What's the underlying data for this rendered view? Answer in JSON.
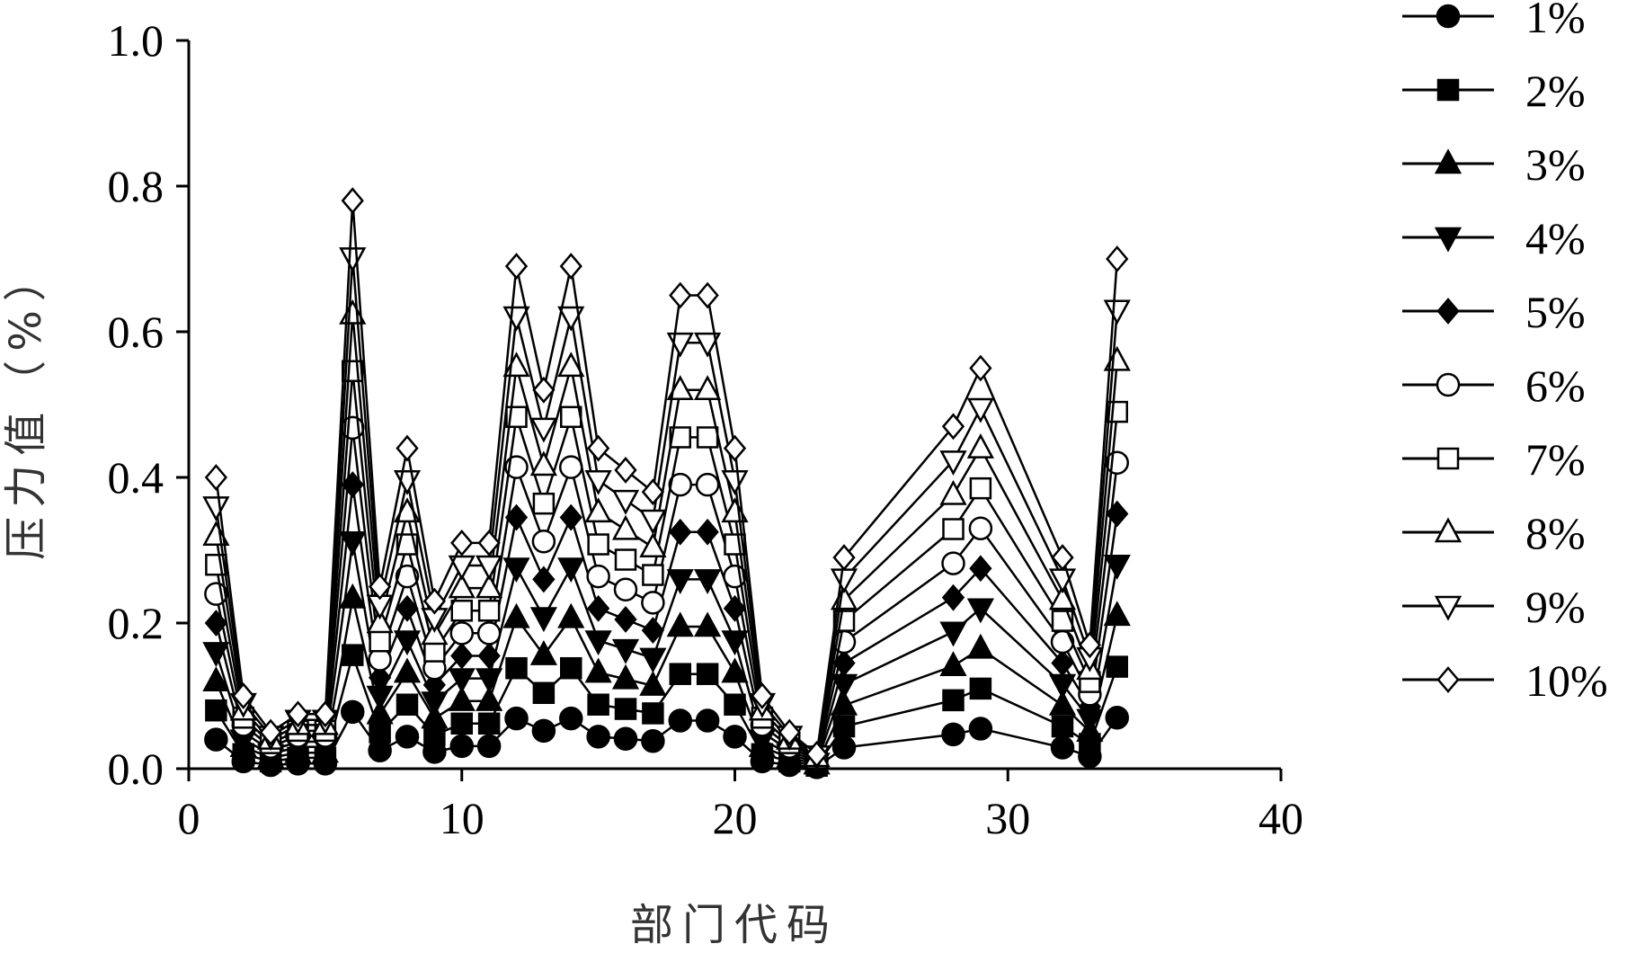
{
  "chart_data": {
    "type": "line",
    "title": "",
    "xlabel": "部门代码",
    "ylabel": "压力值（%）",
    "xlim": [
      0,
      40
    ],
    "ylim": [
      0.0,
      1.0
    ],
    "x_ticks": [
      "0",
      "10",
      "20",
      "30",
      "40"
    ],
    "y_ticks": [
      "0.0",
      "0.2",
      "0.4",
      "0.6",
      "0.8",
      "1.0"
    ],
    "grid": false,
    "legend_position": "right",
    "x": [
      1,
      2,
      3,
      4,
      5,
      6,
      7,
      8,
      9,
      10,
      11,
      12,
      13,
      14,
      15,
      16,
      17,
      18,
      19,
      20,
      21,
      22,
      23,
      24,
      28,
      29,
      32,
      33,
      34
    ],
    "series": [
      {
        "name": "1%",
        "marker": "circle-filled",
        "values": [
          0.04,
          0.01,
          0.005,
          0.007,
          0.007,
          0.078,
          0.025,
          0.044,
          0.023,
          0.031,
          0.031,
          0.069,
          0.052,
          0.069,
          0.044,
          0.041,
          0.038,
          0.066,
          0.066,
          0.044,
          0.01,
          0.005,
          0.002,
          0.029,
          0.047,
          0.055,
          0.029,
          0.017,
          0.07
        ]
      },
      {
        "name": "2%",
        "marker": "square-filled",
        "values": [
          0.08,
          0.02,
          0.01,
          0.015,
          0.015,
          0.156,
          0.05,
          0.088,
          0.046,
          0.062,
          0.062,
          0.138,
          0.104,
          0.138,
          0.088,
          0.082,
          0.076,
          0.13,
          0.13,
          0.088,
          0.02,
          0.01,
          0.004,
          0.058,
          0.094,
          0.11,
          0.058,
          0.034,
          0.14
        ]
      },
      {
        "name": "3%",
        "marker": "triangle-up-filled",
        "values": [
          0.12,
          0.03,
          0.015,
          0.022,
          0.022,
          0.234,
          0.075,
          0.132,
          0.069,
          0.093,
          0.093,
          0.207,
          0.156,
          0.207,
          0.132,
          0.123,
          0.114,
          0.195,
          0.195,
          0.132,
          0.03,
          0.015,
          0.006,
          0.087,
          0.141,
          0.165,
          0.087,
          0.051,
          0.21
        ]
      },
      {
        "name": "4%",
        "marker": "triangle-down-filled",
        "values": [
          0.16,
          0.04,
          0.02,
          0.03,
          0.03,
          0.312,
          0.1,
          0.176,
          0.092,
          0.124,
          0.124,
          0.276,
          0.208,
          0.276,
          0.176,
          0.164,
          0.152,
          0.26,
          0.26,
          0.176,
          0.04,
          0.02,
          0.008,
          0.116,
          0.188,
          0.22,
          0.116,
          0.068,
          0.28
        ]
      },
      {
        "name": "5%",
        "marker": "diamond-filled",
        "values": [
          0.2,
          0.05,
          0.025,
          0.037,
          0.037,
          0.39,
          0.125,
          0.22,
          0.115,
          0.155,
          0.155,
          0.345,
          0.26,
          0.345,
          0.22,
          0.205,
          0.19,
          0.325,
          0.325,
          0.22,
          0.05,
          0.025,
          0.01,
          0.145,
          0.235,
          0.275,
          0.145,
          0.085,
          0.35
        ]
      },
      {
        "name": "6%",
        "marker": "circle-open",
        "values": [
          0.24,
          0.06,
          0.03,
          0.045,
          0.045,
          0.468,
          0.15,
          0.264,
          0.138,
          0.186,
          0.186,
          0.414,
          0.312,
          0.414,
          0.264,
          0.246,
          0.228,
          0.39,
          0.39,
          0.264,
          0.06,
          0.03,
          0.012,
          0.174,
          0.282,
          0.33,
          0.174,
          0.102,
          0.42
        ]
      },
      {
        "name": "7%",
        "marker": "square-open",
        "values": [
          0.28,
          0.07,
          0.035,
          0.052,
          0.052,
          0.546,
          0.175,
          0.308,
          0.161,
          0.217,
          0.217,
          0.483,
          0.364,
          0.483,
          0.308,
          0.287,
          0.266,
          0.455,
          0.455,
          0.308,
          0.07,
          0.035,
          0.014,
          0.203,
          0.329,
          0.385,
          0.203,
          0.119,
          0.49
        ]
      },
      {
        "name": "8%",
        "marker": "triangle-up-open",
        "values": [
          0.32,
          0.08,
          0.04,
          0.06,
          0.06,
          0.624,
          0.2,
          0.352,
          0.184,
          0.248,
          0.248,
          0.552,
          0.416,
          0.552,
          0.352,
          0.328,
          0.304,
          0.52,
          0.52,
          0.352,
          0.08,
          0.04,
          0.016,
          0.232,
          0.376,
          0.44,
          0.232,
          0.136,
          0.56
        ]
      },
      {
        "name": "9%",
        "marker": "triangle-down-open",
        "values": [
          0.36,
          0.09,
          0.045,
          0.067,
          0.067,
          0.702,
          0.225,
          0.396,
          0.207,
          0.279,
          0.279,
          0.621,
          0.468,
          0.621,
          0.396,
          0.369,
          0.342,
          0.585,
          0.585,
          0.396,
          0.09,
          0.045,
          0.018,
          0.261,
          0.423,
          0.495,
          0.261,
          0.153,
          0.63
        ]
      },
      {
        "name": "10%",
        "marker": "diamond-open",
        "values": [
          0.4,
          0.1,
          0.05,
          0.075,
          0.075,
          0.78,
          0.25,
          0.44,
          0.23,
          0.31,
          0.31,
          0.69,
          0.52,
          0.69,
          0.44,
          0.41,
          0.38,
          0.65,
          0.65,
          0.44,
          0.1,
          0.05,
          0.02,
          0.29,
          0.47,
          0.55,
          0.29,
          0.17,
          0.7
        ]
      }
    ]
  }
}
